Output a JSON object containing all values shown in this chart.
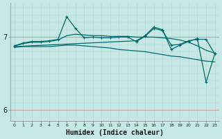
{
  "xlabel": "Humidex (Indice chaleur)",
  "background_color": "#c5e8e4",
  "line_color": "#006b6b",
  "grid_color_h": "#c0a8a8",
  "grid_color_v": "#b8d8d4",
  "x_values": [
    0,
    1,
    2,
    3,
    4,
    5,
    6,
    7,
    8,
    9,
    10,
    11,
    12,
    13,
    14,
    15,
    16,
    17,
    18,
    19,
    20,
    21,
    22,
    23
  ],
  "line_jagged": [
    6.88,
    6.92,
    6.94,
    6.94,
    6.95,
    6.97,
    7.28,
    7.12,
    6.99,
    7.0,
    6.99,
    6.99,
    7.0,
    7.0,
    6.94,
    7.01,
    7.12,
    7.09,
    6.89,
    6.9,
    6.95,
    6.97,
    6.97,
    6.77
  ],
  "line_smooth_up": [
    6.88,
    6.91,
    6.93,
    6.93,
    6.94,
    6.96,
    7.02,
    7.04,
    7.03,
    7.02,
    7.02,
    7.01,
    7.01,
    7.01,
    7.0,
    7.0,
    7.0,
    6.99,
    6.98,
    6.96,
    6.93,
    6.88,
    6.82,
    6.78
  ],
  "line_smooth_low": [
    6.86,
    6.87,
    6.87,
    6.87,
    6.87,
    6.88,
    6.89,
    6.89,
    6.88,
    6.87,
    6.86,
    6.85,
    6.83,
    6.82,
    6.81,
    6.8,
    6.78,
    6.76,
    6.74,
    6.73,
    6.71,
    6.69,
    6.67,
    6.66
  ],
  "line_zigzag_x": [
    0,
    14,
    15,
    16,
    17,
    18,
    19,
    20,
    21,
    22,
    23
  ],
  "line_zigzag_y": [
    6.87,
    6.95,
    7.02,
    7.14,
    7.1,
    6.83,
    6.89,
    6.94,
    6.98,
    6.38,
    6.77
  ],
  "ylim": [
    5.85,
    7.47
  ],
  "yticks": [
    6.0,
    7.0
  ],
  "xlim": [
    -0.5,
    23.5
  ]
}
